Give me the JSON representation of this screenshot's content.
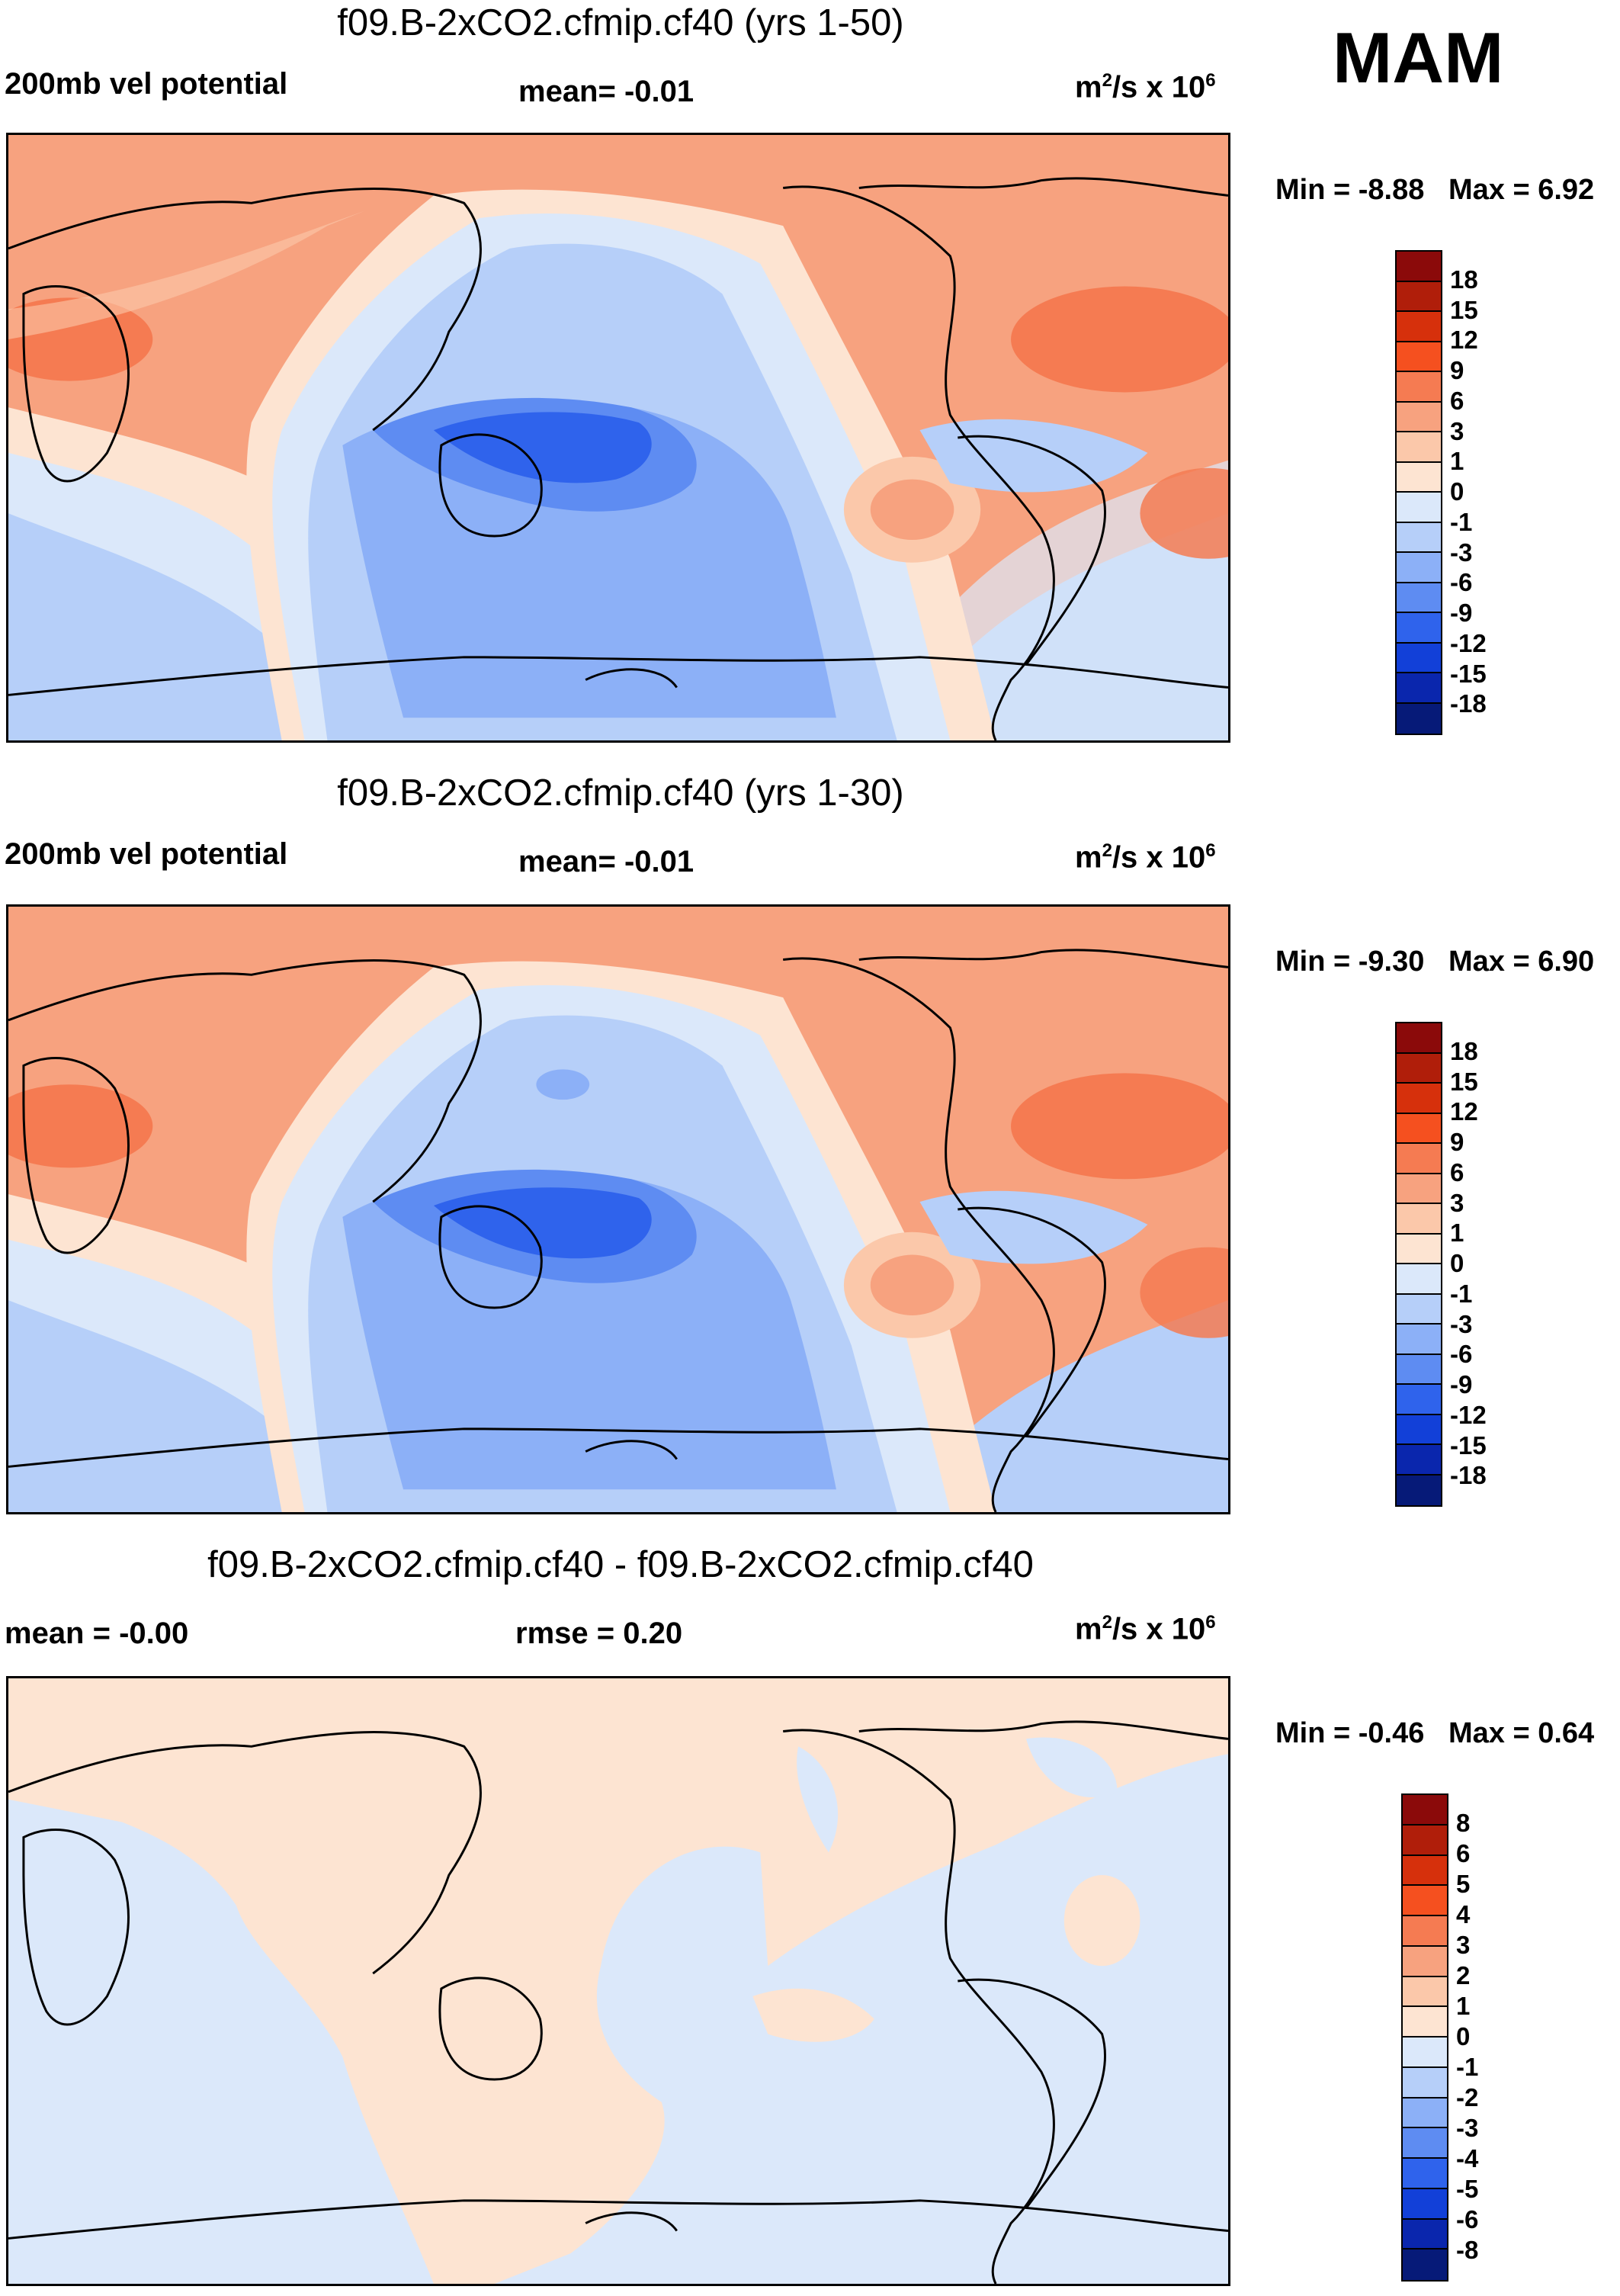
{
  "season": "MAM",
  "panels": [
    {
      "title": "f09.B-2xCO2.cfmip.cf40 (yrs 1-50)",
      "left_label": "200mb vel potential",
      "center_label": "mean=  -0.01",
      "units_base": "m",
      "units_mid": "/s x 10",
      "units_exp1": "2",
      "units_exp2": "6",
      "min_label": "Min =  -8.88",
      "max_label": "Max =   6.92",
      "colorbar": {
        "ticks": [
          "18",
          "15",
          "12",
          "9",
          "6",
          "3",
          "1",
          "0",
          "-1",
          "-3",
          "-6",
          "-9",
          "-12",
          "-15",
          "-18"
        ],
        "colors": [
          "#8b0a0a",
          "#b01e0a",
          "#d6300c",
          "#f5501f",
          "#f57b52",
          "#f7a27f",
          "#fbc8aa",
          "#fde4d2",
          "#dbe8fa",
          "#b6cff9",
          "#8cb0f7",
          "#5e8cf2",
          "#2f63ec",
          "#1240d8",
          "#0a26ad",
          "#061a78"
        ]
      },
      "chart_data": {
        "type": "heatmap",
        "title": "f09.B-2xCO2.cfmip.cf40 (yrs 1-50)",
        "variable": "200mb vel potential",
        "units": "m^2/s x 10^6",
        "mean": -0.01,
        "min": -8.88,
        "max": 6.92,
        "levels": [
          -18,
          -15,
          -12,
          -9,
          -6,
          -3,
          -1,
          0,
          1,
          3,
          6,
          9,
          12,
          15,
          18
        ]
      }
    },
    {
      "title": "f09.B-2xCO2.cfmip.cf40 (yrs 1-30)",
      "left_label": "200mb vel potential",
      "center_label": "mean=  -0.01",
      "units_base": "m",
      "units_mid": "/s x 10",
      "units_exp1": "2",
      "units_exp2": "6",
      "min_label": "Min =  -9.30",
      "max_label": "Max =   6.90",
      "colorbar": {
        "ticks": [
          "18",
          "15",
          "12",
          "9",
          "6",
          "3",
          "1",
          "0",
          "-1",
          "-3",
          "-6",
          "-9",
          "-12",
          "-15",
          "-18"
        ],
        "colors": [
          "#8b0a0a",
          "#b01e0a",
          "#d6300c",
          "#f5501f",
          "#f57b52",
          "#f7a27f",
          "#fbc8aa",
          "#fde4d2",
          "#dbe8fa",
          "#b6cff9",
          "#8cb0f7",
          "#5e8cf2",
          "#2f63ec",
          "#1240d8",
          "#0a26ad",
          "#061a78"
        ]
      },
      "chart_data": {
        "type": "heatmap",
        "title": "f09.B-2xCO2.cfmip.cf40 (yrs 1-30)",
        "variable": "200mb vel potential",
        "units": "m^2/s x 10^6",
        "mean": -0.01,
        "min": -9.3,
        "max": 6.9,
        "levels": [
          -18,
          -15,
          -12,
          -9,
          -6,
          -3,
          -1,
          0,
          1,
          3,
          6,
          9,
          12,
          15,
          18
        ]
      }
    },
    {
      "title": "f09.B-2xCO2.cfmip.cf40 - f09.B-2xCO2.cfmip.cf40",
      "left_label": "mean =  -0.00",
      "center_label": "rmse =   0.20",
      "units_base": "m",
      "units_mid": "/s x 10",
      "units_exp1": "2",
      "units_exp2": "6",
      "min_label": "Min =  -0.46",
      "max_label": "Max =   0.64",
      "colorbar": {
        "ticks": [
          "8",
          "6",
          "5",
          "4",
          "3",
          "2",
          "1",
          "0",
          "-1",
          "-2",
          "-3",
          "-4",
          "-5",
          "-6",
          "-8"
        ],
        "colors": [
          "#8b0a0a",
          "#b01e0a",
          "#d6300c",
          "#f5501f",
          "#f57b52",
          "#f7a27f",
          "#fbc8aa",
          "#fde4d2",
          "#dbe8fa",
          "#b6cff9",
          "#8cb0f7",
          "#5e8cf2",
          "#2f63ec",
          "#1240d8",
          "#0a26ad",
          "#061a78"
        ]
      },
      "chart_data": {
        "type": "heatmap",
        "title": "f09.B-2xCO2.cfmip.cf40 - f09.B-2xCO2.cfmip.cf40",
        "units": "m^2/s x 10^6",
        "mean": -0.0,
        "rmse": 0.2,
        "min": -0.46,
        "max": 0.64,
        "levels": [
          -8,
          -6,
          -5,
          -4,
          -3,
          -2,
          -1,
          0,
          1,
          2,
          3,
          4,
          5,
          6,
          8
        ]
      }
    }
  ]
}
